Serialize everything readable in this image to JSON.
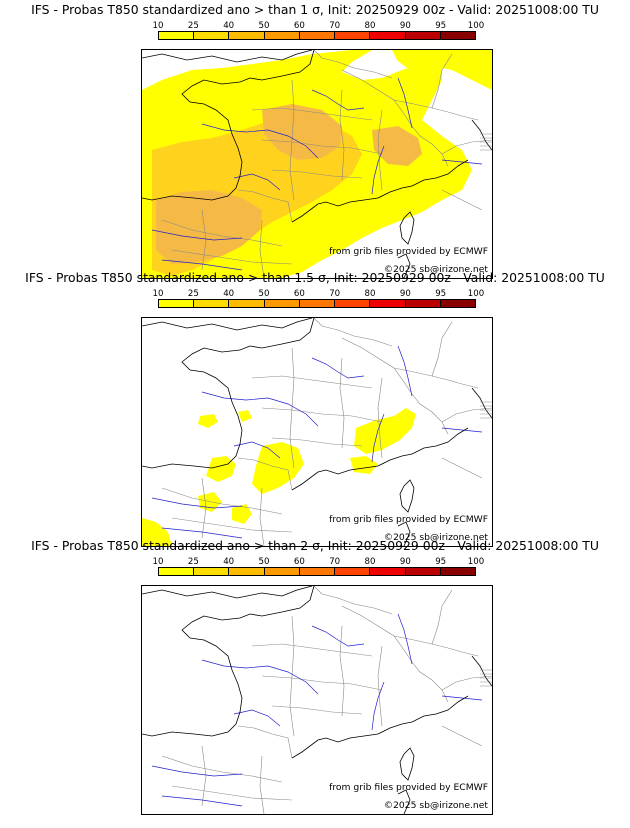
{
  "scale": {
    "labels": [
      "10",
      "25",
      "40",
      "50",
      "60",
      "70",
      "80",
      "90",
      "95",
      "100"
    ],
    "colors": [
      "#ffff00",
      "#ffdd00",
      "#ffbb00",
      "#ff9900",
      "#ff7700",
      "#ff4400",
      "#ee0000",
      "#bb0000",
      "#880000"
    ]
  },
  "map_colors": {
    "land": "#ffffff",
    "sea": "#ffffff",
    "coast": "#000000",
    "borders": "#888888",
    "rivers": "#2222cc",
    "prob_low": "#ffff00",
    "prob_mid": "#ffd21e",
    "prob_high": "#f5ba46"
  },
  "panels": [
    {
      "title": "IFS - Probas T850  standardized ano > than 1 σ, Init: 20250929 00z - Valid: 20251008:00 TU",
      "credit_source": "from grib files provided by ECMWF",
      "credit_copy": "©2025 sb@irizone.net",
      "coverage": "high"
    },
    {
      "title": "IFS - Probas T850  standardized ano > than 1.5 σ, Init: 20250929 00z - Valid: 20251008:00 TU",
      "credit_source": "from grib files provided by ECMWF",
      "credit_copy": "©2025 sb@irizone.net",
      "coverage": "low"
    },
    {
      "title": "IFS - Probas T850  standardized ano > than 2 σ, Init: 20250929 00z - Valid: 20251008:00 TU",
      "credit_source": "from grib files provided by ECMWF",
      "credit_copy": "©2025 sb@irizone.net",
      "coverage": "none"
    }
  ]
}
